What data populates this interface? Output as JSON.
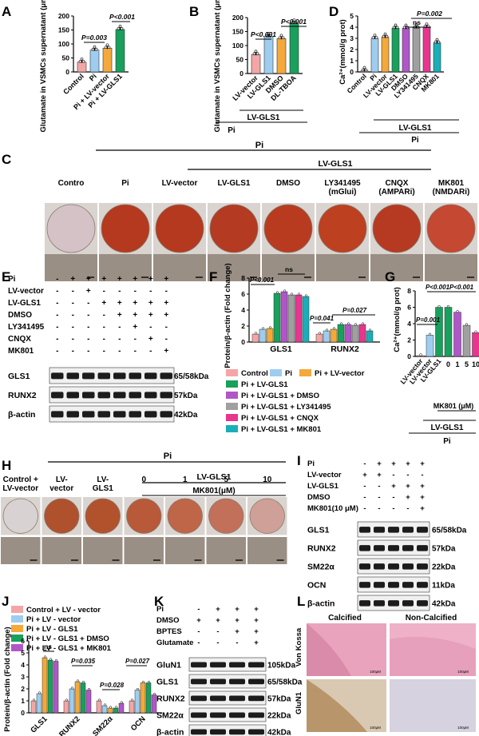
{
  "colors": {
    "control": "#f4a6a6",
    "pi": "#9ecdf0",
    "pi_lv_vector": "#f4a93a",
    "pi_lv_gls1": "#19a05c",
    "dmso": "#b057c8",
    "ly": "#a0a0a0",
    "cnqx": "#e8368f",
    "mk801": "#1aaeb8",
    "stain_red": "#b5391e",
    "micro": "#9a8f84",
    "blot_bg": "#f0f0f0",
    "band": "#1c1c1c"
  },
  "panels": {
    "A": {
      "label": "A",
      "ylabel": "Glutamate in VSMCs supernatant (μmol/l)",
      "p1": "P=0.003",
      "p2": "P<0.001",
      "yticks": [
        "0",
        "50",
        "100",
        "150",
        "200"
      ],
      "chart_data": {
        "type": "bar",
        "categories": [
          "Control",
          "Pi",
          "Pi + LV-vector",
          "Pi + LV-GLS1"
        ],
        "values": [
          35,
          78,
          85,
          152
        ],
        "ylim": [
          0,
          200
        ]
      }
    },
    "B": {
      "label": "B",
      "ylabel": "Glutamate in VSMCs supernatant (μmol/l)",
      "p1": "P<0.001",
      "p2": "P<0.001",
      "yticks": [
        "0",
        "50",
        "100",
        "150",
        "200"
      ],
      "group1": "LV-GLS1",
      "group2": "Pi",
      "chart_data": {
        "type": "bar",
        "categories": [
          "LV-vector",
          "LV-GLS1",
          "DMSO",
          "DL-TBOA"
        ],
        "values": [
          68,
          132,
          125,
          180
        ],
        "ylim": [
          0,
          200
        ]
      }
    },
    "D": {
      "label": "D",
      "ylabel": "Ca²⁺(mmol/g prot)",
      "p1": "P=0.002",
      "ns": "ns",
      "yticks": [
        "0",
        "1",
        "2",
        "3",
        "4",
        "5"
      ],
      "group1": "LV-GLS1",
      "group2": "Pi",
      "chart_data": {
        "type": "bar",
        "categories": [
          "Control",
          "Pi",
          "LV-vector",
          "LV-GLS1",
          "DMSO",
          "LY341495",
          "CNQX",
          "MK801"
        ],
        "values": [
          0.1,
          3.0,
          3.1,
          3.9,
          3.9,
          3.95,
          4.0,
          2.6
        ],
        "ylim": [
          0,
          5
        ]
      }
    },
    "C": {
      "label": "C",
      "pi": "Pi",
      "lvgls1": "LV-GLS1",
      "cols": [
        "Contro",
        "Pi",
        "LV-vector",
        "LV-GLS1",
        "DMSO",
        "LY341495\n(mGlui)",
        "CNQX\n(AMPARi)",
        "MK801\n(NMDARi)"
      ]
    },
    "E": {
      "label": "E",
      "rows": [
        {
          "name": "Pi",
          "signs": [
            "-",
            "+",
            "+",
            "+",
            "+",
            "+",
            "+",
            "+"
          ]
        },
        {
          "name": "LV-vector",
          "signs": [
            "-",
            "-",
            "+",
            "-",
            "-",
            "-",
            "-",
            "-"
          ]
        },
        {
          "name": "LV-GLS1",
          "signs": [
            "-",
            "-",
            "-",
            "+",
            "+",
            "+",
            "+",
            "+"
          ]
        },
        {
          "name": "DMSO",
          "signs": [
            "-",
            "-",
            "-",
            "-",
            "+",
            "+",
            "+",
            "+"
          ]
        },
        {
          "name": "LY341495",
          "signs": [
            "-",
            "-",
            "-",
            "-",
            "-",
            "+",
            "-",
            "-"
          ]
        },
        {
          "name": "CNQX",
          "signs": [
            "-",
            "-",
            "-",
            "-",
            "-",
            "-",
            "+",
            "-"
          ]
        },
        {
          "name": "MK801",
          "signs": [
            "-",
            "-",
            "-",
            "-",
            "-",
            "-",
            "-",
            "+"
          ]
        }
      ],
      "blots": [
        {
          "name": "GLS1",
          "kda": "65/58kDa"
        },
        {
          "name": "RUNX2",
          "kda": "57kDa"
        },
        {
          "name": "β-actin",
          "kda": "42kDa"
        }
      ]
    },
    "F": {
      "label": "F",
      "ylabel": "Protein/β-actin (Fold change)",
      "yticks": [
        "0",
        "2",
        "4",
        "6",
        "8"
      ],
      "p1": "P<0.001",
      "ns": "ns",
      "p2": "P=0.041",
      "p3": "P=0.027",
      "legend": [
        "Control",
        "Pi",
        "Pi + LV-vector",
        "Pi + LV-GLS1",
        "Pi + LV-GLS1 + DMSO",
        "Pi + LV-GLS1 + LY341495",
        "Pi + LV-GLS1 + CNQX",
        "Pi + LV-GLS1 + MK801"
      ],
      "chart_data": {
        "type": "bar",
        "categories": [
          "GLS1",
          "RUNX2"
        ],
        "ylim": [
          0,
          8
        ],
        "series": [
          {
            "name": "Control",
            "values": [
              1.0,
              1.0
            ]
          },
          {
            "name": "Pi",
            "values": [
              1.6,
              1.4
            ]
          },
          {
            "name": "Pi + LV-vector",
            "values": [
              1.7,
              1.6
            ]
          },
          {
            "name": "Pi + LV-GLS1",
            "values": [
              6.1,
              2.2
            ]
          },
          {
            "name": "Pi + LV-GLS1 + DMSO",
            "values": [
              6.3,
              2.2
            ]
          },
          {
            "name": "Pi + LV-GLS1 + LY341495",
            "values": [
              5.9,
              2.1
            ]
          },
          {
            "name": "Pi + LV-GLS1 + CNQX",
            "values": [
              5.9,
              2.2
            ]
          },
          {
            "name": "Pi + LV-GLS1 + MK801",
            "values": [
              5.7,
              1.4
            ]
          }
        ]
      }
    },
    "G": {
      "label": "G",
      "ylabel": "Ca²⁺(mmol/g prot)",
      "yticks": [
        "0",
        "2",
        "4",
        "6",
        "8"
      ],
      "p1": "P=0.001",
      "p2": "P<0.001",
      "p3": "P<0.001",
      "mk": "MK801 (μM)",
      "group1": "LV-GLS1",
      "group2": "Pi",
      "chart_data": {
        "type": "bar",
        "categories": [
          "LV-vector",
          "LV-vector",
          "LV-GLS1",
          "0",
          "1",
          "5",
          "10"
        ],
        "values": [
          0.1,
          2.6,
          6.0,
          6.0,
          5.4,
          3.8,
          2.9
        ],
        "ylim": [
          0,
          8
        ]
      }
    },
    "H": {
      "label": "H",
      "pi": "Pi",
      "lvgls1": "LV-GLS1",
      "mk": "MK801(μM)",
      "cols": [
        "Control +\nLV-vector",
        "LV-\nvector",
        "LV-\nGLS1",
        "0",
        "1",
        "5",
        "10"
      ]
    },
    "I": {
      "label": "I",
      "rows": [
        {
          "name": "Pi",
          "signs": [
            "-",
            "+",
            "+",
            "+",
            "+"
          ]
        },
        {
          "name": "LV-vector",
          "signs": [
            "+",
            "+",
            "-",
            "-",
            "-"
          ]
        },
        {
          "name": "LV-GLS1",
          "signs": [
            "-",
            "-",
            "+",
            "+",
            "+"
          ]
        },
        {
          "name": "DMSO",
          "signs": [
            "-",
            "-",
            "-",
            "+",
            "+"
          ]
        },
        {
          "name": "MK801(10 μM)",
          "signs": [
            "-",
            "-",
            "-",
            "-",
            "+"
          ]
        }
      ],
      "blots": [
        {
          "name": "GLS1",
          "kda": "65/58kDa"
        },
        {
          "name": "RUNX2",
          "kda": "57kDa"
        },
        {
          "name": "SM22α",
          "kda": "22kDa"
        },
        {
          "name": "OCN",
          "kda": "11kDa"
        },
        {
          "name": "β-actin",
          "kda": "42kDa"
        }
      ]
    },
    "J": {
      "label": "J",
      "ylabel": "Protein/β-actin (Fold change)",
      "yticks": [
        "0",
        "1",
        "2",
        "3",
        "4",
        "5",
        "6"
      ],
      "ns": "ns",
      "p1": "P=0.035",
      "p2": "P=0.028",
      "p3": "P=0.027",
      "legend": [
        "Control + LV - vector",
        "Pi + LV - vector",
        "Pi + LV - GLS1",
        "Pi + LV - GLS1 + DMSO",
        "Pi + LV - GLS1 + MK801"
      ],
      "chart_data": {
        "type": "bar",
        "categories": [
          "GLS1",
          "RUNX2",
          "SM22α",
          "OCN"
        ],
        "ylim": [
          0,
          6
        ],
        "series": [
          {
            "name": "Control + LV - vector",
            "values": [
              1.0,
              1.0,
              1.0,
              1.0
            ]
          },
          {
            "name": "Pi + LV - vector",
            "values": [
              1.6,
              2.0,
              0.6,
              1.9
            ]
          },
          {
            "name": "Pi + LV - GLS1",
            "values": [
              4.6,
              2.6,
              0.4,
              2.5
            ]
          },
          {
            "name": "Pi + LV - GLS1 + DMSO",
            "values": [
              4.4,
              2.5,
              0.4,
              2.5
            ]
          },
          {
            "name": "Pi + LV - GLS1 + MK801",
            "values": [
              4.3,
              1.9,
              0.8,
              1.5
            ]
          }
        ]
      }
    },
    "K": {
      "label": "K",
      "rows": [
        {
          "name": "Pi",
          "signs": [
            "-",
            "+",
            "+",
            "+"
          ]
        },
        {
          "name": "DMSO",
          "signs": [
            "+",
            "+",
            "+",
            "+"
          ]
        },
        {
          "name": "BPTES",
          "signs": [
            "-",
            "-",
            "+",
            "+"
          ]
        },
        {
          "name": "Glutamate",
          "signs": [
            "-",
            "-",
            "-",
            "+"
          ]
        }
      ],
      "blots": [
        {
          "name": "GluN1",
          "kda": "105kDa"
        },
        {
          "name": "GLS1",
          "kda": "65/58kDa"
        },
        {
          "name": "RUNX2",
          "kda": "57kDa"
        },
        {
          "name": "SM22α",
          "kda": "22kDa"
        },
        {
          "name": "β-actin",
          "kda": "42kDa"
        }
      ]
    },
    "L": {
      "label": "L",
      "calcified": "Calcified",
      "noncalcified": "Non-Calcified",
      "row1": "Von Kossa",
      "row2": "GluN1",
      "scale": "100μM"
    }
  }
}
